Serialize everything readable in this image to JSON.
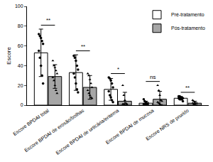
{
  "chart_data": {
    "type": "bar",
    "y_label": "Escore",
    "categories": [
      "Escore BPDAI total",
      "Escore BPDAI de erosão/bolhas",
      "Escore BPDAI de urticária/eritema",
      "Escore BPDAI de mucosa",
      "Escore NRS de prurido"
    ],
    "series": [
      {
        "name": "Pré-tratamento",
        "color": "#ffffff",
        "marker": "circle",
        "values": [
          53,
          33,
          16,
          2,
          7
        ],
        "errors": [
          24,
          18,
          11,
          2,
          1.5
        ],
        "points": [
          [
            72,
            70,
            68,
            65,
            62,
            55,
            48,
            40,
            30,
            22
          ],
          [
            50,
            48,
            45,
            40,
            36,
            32,
            28,
            22,
            16,
            13
          ],
          [
            28,
            27,
            25,
            22,
            18,
            14,
            10,
            8,
            5,
            3
          ],
          [
            6,
            4,
            3,
            2,
            2,
            1,
            1,
            1,
            0,
            0
          ],
          [
            9,
            9,
            8,
            8,
            7,
            7,
            6,
            6,
            6,
            4
          ]
        ]
      },
      {
        "name": "Pós-tratamento",
        "color": "#a6a6a6",
        "marker": "triangle-up",
        "values": [
          29,
          18,
          4,
          6,
          2
        ],
        "errors": [
          12,
          12,
          9,
          8,
          2
        ],
        "points": [
          [
            45,
            40,
            38,
            35,
            32,
            28,
            25,
            20,
            15,
            12
          ],
          [
            32,
            30,
            26,
            22,
            18,
            15,
            12,
            10,
            8,
            7
          ],
          [
            20,
            10,
            5,
            2,
            1,
            1,
            1,
            0,
            0,
            0
          ],
          [
            20,
            15,
            10,
            5,
            4,
            3,
            2,
            1,
            0,
            0
          ],
          [
            5,
            4,
            3,
            2,
            2,
            2,
            1,
            1,
            0,
            0
          ]
        ]
      }
    ],
    "significance": [
      "**",
      "**",
      "*",
      "ns",
      "**"
    ],
    "ylim": [
      0,
      100
    ],
    "yticks": [
      0,
      20,
      40,
      60,
      80,
      100
    ],
    "grid": false,
    "legend": "top right"
  }
}
